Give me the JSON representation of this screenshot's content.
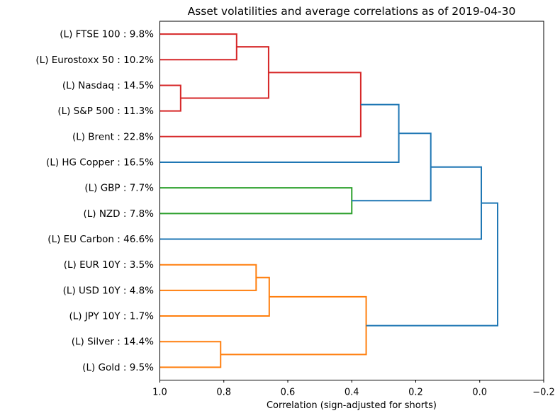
{
  "chart_data": {
    "type": "dendrogram",
    "orientation": "horizontal-right",
    "title": "Asset volatilities and average correlations as of 2019-04-30",
    "xlabel": "Correlation (sign-adjusted for shorts)",
    "xlim": [
      1.0,
      -0.2
    ],
    "grid": false,
    "background": "#ffffff",
    "axis_color": "#000000",
    "leaf_label_color": "#008000",
    "link_colors": {
      "red": "#d62728",
      "green": "#2ca02c",
      "blue": "#1f77b4",
      "orange": "#ff7f0e"
    },
    "x_ticks": [
      {
        "value": 1.0,
        "label": "1.0"
      },
      {
        "value": 0.8,
        "label": "0.8"
      },
      {
        "value": 0.6,
        "label": "0.6"
      },
      {
        "value": 0.4,
        "label": "0.4"
      },
      {
        "value": 0.2,
        "label": "0.2"
      },
      {
        "value": 0.0,
        "label": "0.0"
      },
      {
        "value": -0.2,
        "label": "−0.2"
      }
    ],
    "leaves": [
      {
        "id": "L0",
        "label": "(L) FTSE 100 : 9.8%",
        "asset": "FTSE 100",
        "volatility_pct": 9.8
      },
      {
        "id": "L1",
        "label": "(L) Eurostoxx 50 : 10.2%",
        "asset": "Eurostoxx 50",
        "volatility_pct": 10.2
      },
      {
        "id": "L2",
        "label": "(L) Nasdaq : 14.5%",
        "asset": "Nasdaq",
        "volatility_pct": 14.5
      },
      {
        "id": "L3",
        "label": "(L) S&P 500 : 11.3%",
        "asset": "S&P 500",
        "volatility_pct": 11.3
      },
      {
        "id": "L4",
        "label": "(L) Brent : 22.8%",
        "asset": "Brent",
        "volatility_pct": 22.8
      },
      {
        "id": "L5",
        "label": "(L) HG Copper : 16.5%",
        "asset": "HG Copper",
        "volatility_pct": 16.5
      },
      {
        "id": "L6",
        "label": "(L) GBP : 7.7%",
        "asset": "GBP",
        "volatility_pct": 7.7
      },
      {
        "id": "L7",
        "label": "(L) NZD : 7.8%",
        "asset": "NZD",
        "volatility_pct": 7.8
      },
      {
        "id": "L8",
        "label": "(L) EU Carbon : 46.6%",
        "asset": "EU Carbon",
        "volatility_pct": 46.6
      },
      {
        "id": "L9",
        "label": "(L) EUR 10Y : 3.5%",
        "asset": "EUR 10Y",
        "volatility_pct": 3.5
      },
      {
        "id": "L10",
        "label": "(L) USD 10Y : 4.8%",
        "asset": "USD 10Y",
        "volatility_pct": 4.8
      },
      {
        "id": "L11",
        "label": "(L) JPY 10Y : 1.7%",
        "asset": "JPY 10Y",
        "volatility_pct": 1.7
      },
      {
        "id": "L12",
        "label": "(L) Silver : 14.4%",
        "asset": "Silver",
        "volatility_pct": 14.4
      },
      {
        "id": "L13",
        "label": "(L) Gold : 9.5%",
        "asset": "Gold",
        "volatility_pct": 9.5
      }
    ],
    "merges": [
      {
        "id": "m1",
        "a": "L2",
        "b": "L3",
        "corr": 0.935,
        "color": "red"
      },
      {
        "id": "m2",
        "a": "L0",
        "b": "L1",
        "corr": 0.76,
        "color": "red"
      },
      {
        "id": "m3",
        "a": "m2",
        "b": "m1",
        "corr": 0.66,
        "color": "red"
      },
      {
        "id": "m4",
        "a": "m3",
        "b": "L4",
        "corr": 0.372,
        "color": "red"
      },
      {
        "id": "m5",
        "a": "m4",
        "b": "L5",
        "corr": 0.253,
        "color": "blue"
      },
      {
        "id": "m6",
        "a": "L6",
        "b": "L7",
        "corr": 0.4,
        "color": "green"
      },
      {
        "id": "m7",
        "a": "m5",
        "b": "m6",
        "corr": 0.153,
        "color": "blue"
      },
      {
        "id": "m8",
        "a": "m7",
        "b": "L8",
        "corr": -0.005,
        "color": "blue"
      },
      {
        "id": "m10",
        "a": "L9",
        "b": "L10",
        "corr": 0.699,
        "color": "orange"
      },
      {
        "id": "m11",
        "a": "m10",
        "b": "L11",
        "corr": 0.658,
        "color": "orange"
      },
      {
        "id": "m12",
        "a": "L12",
        "b": "L13",
        "corr": 0.81,
        "color": "orange"
      },
      {
        "id": "m13",
        "a": "m11",
        "b": "m12",
        "corr": 0.355,
        "color": "orange"
      },
      {
        "id": "m9",
        "a": "m8",
        "b": "m13",
        "corr": -0.056,
        "color": "blue"
      }
    ]
  }
}
